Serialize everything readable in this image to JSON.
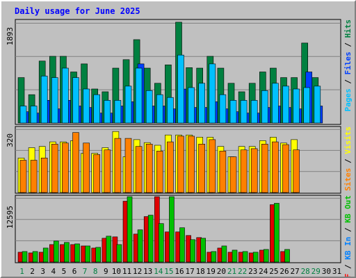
{
  "chart_data": {
    "type": "bar",
    "title": "Daily usage for June 2025",
    "background_color": "#c0c0c0",
    "plot_background_color": "#c0c0c0",
    "x_tick_labels": [
      "1",
      "2",
      "3",
      "4",
      "5",
      "6",
      "7",
      "8",
      "9",
      "10",
      "11",
      "12",
      "13",
      "14",
      "15",
      "16",
      "17",
      "18",
      "19",
      "20",
      "21",
      "22",
      "23",
      "24",
      "25",
      "26",
      "27",
      "28",
      "29",
      "30",
      "31"
    ],
    "x_tick_colors": [
      "#008040",
      "#000000",
      "#000000",
      "#000000",
      "#000000",
      "#000000",
      "#008040",
      "#008040",
      "#000000",
      "#000000",
      "#000000",
      "#000000",
      "#000000",
      "#008040",
      "#008040",
      "#000000",
      "#000000",
      "#000000",
      "#000000",
      "#000000",
      "#008040",
      "#008040",
      "#000000",
      "#000000",
      "#000000",
      "#000000",
      "#000000",
      "#008040",
      "#008040",
      "#000000",
      "#000000"
    ],
    "panels": [
      {
        "id": "hits-files-pages",
        "y_max_label": "1893",
        "ylim": [
          0,
          1893
        ],
        "right_label": [
          {
            "text": "Pages",
            "color": "#00c0ff"
          },
          {
            "text": " / ",
            "color": "#000000"
          },
          {
            "text": "Files",
            "color": "#0040ff"
          },
          {
            "text": " / ",
            "color": "#000000"
          },
          {
            "text": "Hits",
            "color": "#008040"
          }
        ],
        "series": [
          {
            "name": "Hits",
            "color": "#008040",
            "values": [
              842,
              526,
              1149,
              1236,
              1236,
              947,
              1096,
              631,
              579,
              1017,
              1175,
              1545,
              1017,
              736,
              1078,
              1868,
              1026,
              1017,
              1236,
              1017,
              736,
              579,
              736,
              947,
              1017,
              842,
              842,
              1482,
              842,
              0,
              0
            ]
          },
          {
            "name": "Files",
            "color": "#0040ff",
            "values": [
              210,
              184,
              421,
              263,
              421,
              315,
              289,
              184,
              184,
              315,
              394,
              1096,
              315,
              315,
              263,
              630,
              289,
              289,
              394,
              263,
              210,
              184,
              184,
              289,
              315,
              289,
              263,
              947,
              315,
              0,
              0
            ]
          },
          {
            "name": "Pages",
            "color": "#00c0ff",
            "values": [
              315,
              315,
              870,
              842,
              1017,
              842,
              631,
              526,
              420,
              420,
              684,
              1017,
              601,
              526,
              474,
              1259,
              657,
              736,
              1096,
              526,
              420,
              420,
              420,
              601,
              736,
              684,
              631,
              657,
              684,
              0,
              0
            ]
          }
        ]
      },
      {
        "id": "visits-sites",
        "y_max_label": "320",
        "ylim": [
          0,
          320
        ],
        "right_label": [
          {
            "text": "Sites",
            "color": "#ff8000"
          },
          {
            "text": " / ",
            "color": "#000000"
          },
          {
            "text": "Visits",
            "color": "#ffff00"
          }
        ],
        "series": [
          {
            "name": "Visits",
            "color": "#ffff00",
            "values": [
              171,
              222,
              228,
              251,
              251,
              257,
              194,
              194,
              222,
              302,
              177,
              262,
              247,
              234,
              285,
              285,
              285,
              274,
              274,
              228,
              177,
              228,
              228,
              257,
              274,
              245,
              262,
              0,
              0,
              0,
              0
            ]
          },
          {
            "name": "Sites",
            "color": "#ff8000",
            "values": [
              160,
              160,
              171,
              240,
              245,
              297,
              245,
              188,
              211,
              268,
              268,
              228,
              240,
              205,
              251,
              279,
              279,
              240,
              262,
              205,
              177,
              211,
              217,
              240,
              251,
              237,
              211,
              0,
              0,
              0,
              0
            ]
          }
        ]
      },
      {
        "id": "kbytes",
        "y_max_label": "12595",
        "ylim": [
          0,
          12595
        ],
        "right_label": [
          {
            "text": "KB F",
            "color": "#ff0000"
          },
          {
            "text": " / ",
            "color": "#000000"
          },
          {
            "text": "KB In",
            "color": "#0080ff"
          },
          {
            "text": " / ",
            "color": "#000000"
          },
          {
            "text": "KB Out",
            "color": "#00c000"
          }
        ],
        "series": [
          {
            "name": "KB F",
            "color": "#e00000",
            "values": [
              1888,
              1752,
              1888,
              3369,
              3369,
              3369,
              3100,
              2695,
              4583,
              4856,
              11725,
              5390,
              8758,
              12595,
              5796,
              5796,
              5120,
              4717,
              1888,
              2695,
              1888,
              1888,
              1752,
              2290,
              11055,
              2021,
              0,
              0,
              0,
              0,
              0
            ]
          },
          {
            "name": "KB In",
            "color": "#0080ff",
            "values": [
              0,
              0,
              0,
              0,
              0,
              0,
              0,
              0,
              0,
              0,
              0,
              0,
              0,
              0,
              0,
              0,
              0,
              0,
              0,
              0,
              0,
              0,
              0,
              0,
              0,
              0,
              0,
              0,
              0,
              0,
              0
            ]
          },
          {
            "name": "KB Out",
            "color": "#00c000",
            "values": [
              2021,
              2021,
              2695,
              4044,
              3772,
              3502,
              3100,
              2832,
              4987,
              3369,
              12595,
              6203,
              9025,
              7408,
              12595,
              6602,
              4313,
              4583,
              2021,
              3100,
              2290,
              2021,
              1888,
              2426,
              11325,
              2426,
              0,
              0,
              0,
              0,
              0
            ]
          }
        ]
      }
    ]
  }
}
